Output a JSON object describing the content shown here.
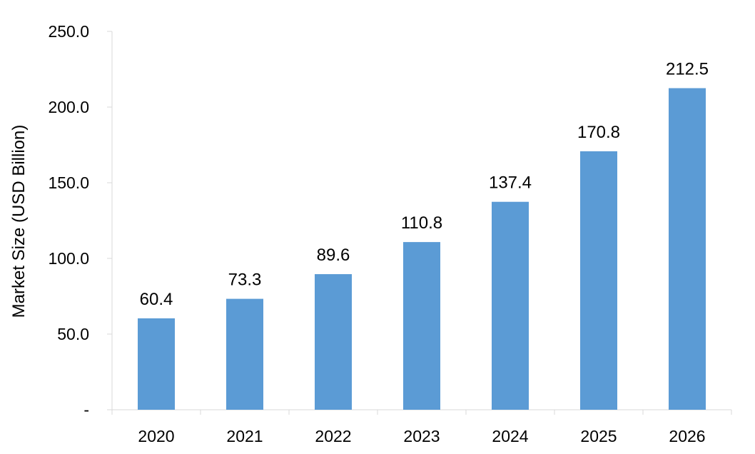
{
  "chart_data": {
    "type": "bar",
    "categories": [
      "2020",
      "2021",
      "2022",
      "2023",
      "2024",
      "2025",
      "2026"
    ],
    "values": [
      60.4,
      73.3,
      89.6,
      110.8,
      137.4,
      170.8,
      212.5
    ],
    "data_labels": [
      "60.4",
      "73.3",
      "89.6",
      "110.8",
      "137.4",
      "170.8",
      "212.5"
    ],
    "title": "",
    "xlabel": "",
    "ylabel": "Market Size (USD Billion)",
    "ylim": [
      0,
      250
    ],
    "yticks": [
      0,
      50,
      100,
      150,
      200,
      250
    ],
    "ytick_labels": [
      "-",
      "50.0",
      "100.0",
      "150.0",
      "200.0",
      "250.0"
    ],
    "bar_color": "#5b9bd5",
    "grid": false,
    "legend": "none"
  }
}
